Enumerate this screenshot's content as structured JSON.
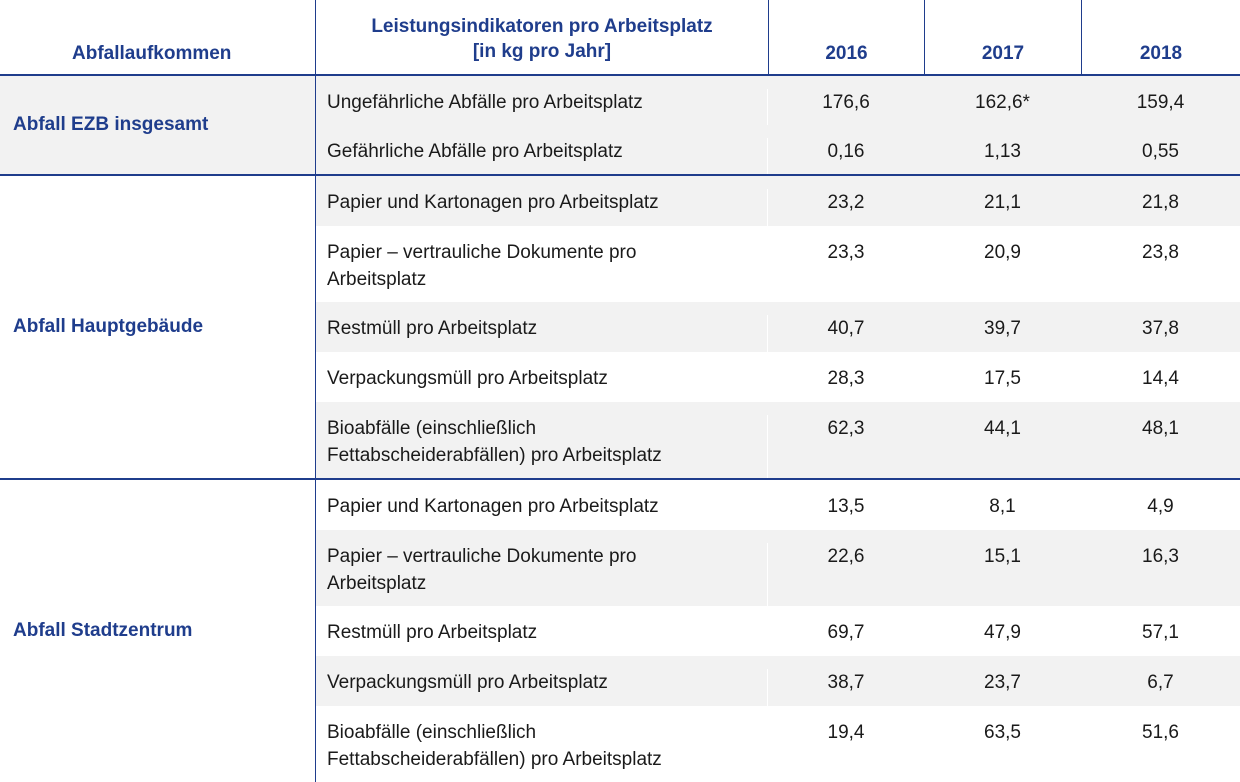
{
  "header": {
    "category": "Abfallaufkommen",
    "indicator_line1": "Leistungsindikatoren pro Arbeitsplatz",
    "indicator_line2": "[in kg pro Jahr]",
    "years": [
      "2016",
      "2017",
      "2018"
    ]
  },
  "groups": [
    {
      "category": "Abfall EZB insgesamt",
      "rows": [
        {
          "indicator": "Ungefährliche Abfälle pro Arbeitsplatz",
          "values": [
            "176,6",
            "162,6*",
            "159,4"
          ]
        },
        {
          "indicator": "Gefährliche Abfälle pro Arbeitsplatz",
          "values": [
            "0,16",
            "1,13",
            "0,55"
          ]
        }
      ]
    },
    {
      "category": "Abfall Hauptgebäude",
      "rows": [
        {
          "indicator": "Papier und Kartonagen pro Arbeitsplatz",
          "values": [
            "23,2",
            "21,1",
            "21,8"
          ]
        },
        {
          "indicator": "Papier – vertrauliche Dokumente pro Arbeitsplatz",
          "values": [
            "23,3",
            "20,9",
            "23,8"
          ]
        },
        {
          "indicator": "Restmüll pro Arbeitsplatz",
          "values": [
            "40,7",
            "39,7",
            "37,8"
          ]
        },
        {
          "indicator": "Verpackungsmüll pro Arbeitsplatz",
          "values": [
            "28,3",
            "17,5",
            "14,4"
          ]
        },
        {
          "indicator": "Bioabfälle (einschließlich Fettabscheiderabfällen) pro Arbeitsplatz",
          "values": [
            "62,3",
            "44,1",
            "48,1"
          ]
        }
      ]
    },
    {
      "category": "Abfall Stadtzentrum",
      "rows": [
        {
          "indicator": "Papier und Kartonagen pro Arbeitsplatz",
          "values": [
            "13,5",
            "8,1",
            "4,9"
          ]
        },
        {
          "indicator": "Papier – vertrauliche Dokumente pro Arbeitsplatz",
          "values": [
            "22,6",
            "15,1",
            "16,3"
          ]
        },
        {
          "indicator": "Restmüll pro Arbeitsplatz",
          "values": [
            "69,7",
            "47,9",
            "57,1"
          ]
        },
        {
          "indicator": "Verpackungsmüll pro Arbeitsplatz",
          "values": [
            "38,7",
            "23,7",
            "6,7"
          ]
        },
        {
          "indicator": "Bioabfälle (einschließlich Fettabscheiderabfällen) pro Arbeitsplatz",
          "values": [
            "19,4",
            "63,5",
            "51,6"
          ]
        }
      ]
    }
  ]
}
